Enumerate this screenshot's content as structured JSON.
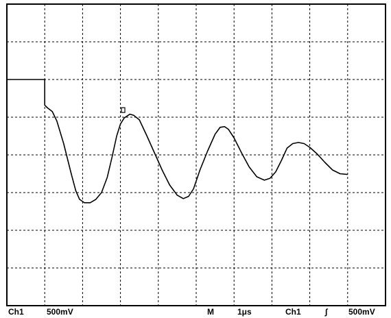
{
  "status_bar": {
    "channel_label": "Ch1",
    "channel_scale": "500mV",
    "timebase_mode": "M",
    "timebase_value": "1μs",
    "trigger_source": "Ch1",
    "trigger_slope_symbol": "∫",
    "trigger_level": "500mV"
  },
  "chart_data": {
    "type": "line",
    "title": "",
    "xlabel": "",
    "ylabel": "",
    "grid": true,
    "x_divisions": 10,
    "y_divisions": 8,
    "xlim": [
      0,
      10
    ],
    "ylim": [
      0,
      8
    ],
    "series": [
      {
        "points": [
          [
            0.0,
            6.0
          ],
          [
            1.0,
            6.0
          ],
          [
            1.0,
            5.32
          ],
          [
            1.07,
            5.25
          ],
          [
            1.2,
            5.15
          ],
          [
            1.32,
            4.9
          ],
          [
            1.5,
            4.3
          ],
          [
            1.7,
            3.5
          ],
          [
            1.82,
            3.05
          ],
          [
            1.92,
            2.82
          ],
          [
            2.05,
            2.73
          ],
          [
            2.2,
            2.73
          ],
          [
            2.35,
            2.82
          ],
          [
            2.5,
            3.0
          ],
          [
            2.65,
            3.4
          ],
          [
            2.78,
            3.95
          ],
          [
            2.9,
            4.5
          ],
          [
            3.0,
            4.82
          ],
          [
            3.1,
            4.98
          ],
          [
            3.25,
            5.08
          ],
          [
            3.35,
            5.05
          ],
          [
            3.5,
            4.93
          ],
          [
            3.7,
            4.5
          ],
          [
            3.9,
            4.05
          ],
          [
            4.1,
            3.6
          ],
          [
            4.3,
            3.2
          ],
          [
            4.5,
            2.93
          ],
          [
            4.66,
            2.84
          ],
          [
            4.8,
            2.9
          ],
          [
            4.93,
            3.1
          ],
          [
            5.1,
            3.6
          ],
          [
            5.3,
            4.1
          ],
          [
            5.5,
            4.55
          ],
          [
            5.63,
            4.73
          ],
          [
            5.75,
            4.75
          ],
          [
            5.85,
            4.68
          ],
          [
            6.0,
            4.45
          ],
          [
            6.2,
            4.05
          ],
          [
            6.4,
            3.68
          ],
          [
            6.6,
            3.42
          ],
          [
            6.8,
            3.33
          ],
          [
            6.95,
            3.38
          ],
          [
            7.1,
            3.55
          ],
          [
            7.25,
            3.85
          ],
          [
            7.4,
            4.18
          ],
          [
            7.55,
            4.3
          ],
          [
            7.7,
            4.33
          ],
          [
            7.85,
            4.3
          ],
          [
            8.0,
            4.2
          ],
          [
            8.2,
            4.02
          ],
          [
            8.4,
            3.8
          ],
          [
            8.6,
            3.6
          ],
          [
            8.8,
            3.5
          ],
          [
            9.0,
            3.48
          ]
        ]
      }
    ],
    "marker": {
      "shape": "small-square",
      "x": 3.08,
      "y": 5.18
    }
  }
}
